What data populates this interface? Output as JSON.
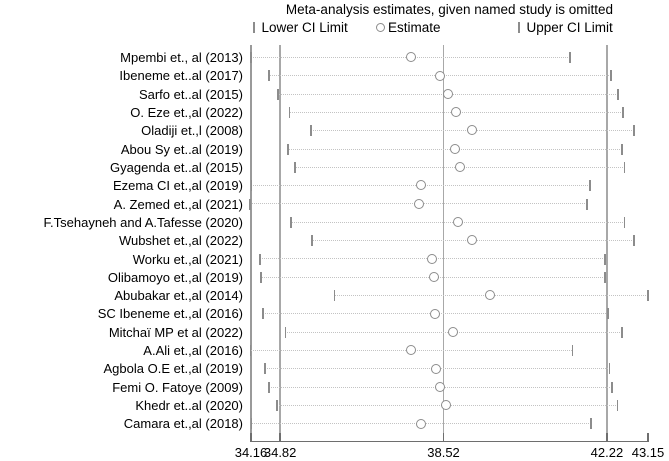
{
  "chart_data": {
    "type": "scatter",
    "subtype": "leave-one-out-sensitivity-forest-plot",
    "title": "Meta-analysis estimates, given named study is omitted",
    "legend": [
      "Lower CI Limit",
      "Estimate",
      "Upper CI Limit"
    ],
    "xlabel": "",
    "ylabel": "",
    "x_range": [
      34.16,
      43.15
    ],
    "x_ticks": [
      34.16,
      34.82,
      38.52,
      42.22,
      43.15
    ],
    "x_tick_labels": [
      "34.16",
      "34.82",
      "38.52",
      "42.22",
      "43.15"
    ],
    "ref_lines": [
      34.82,
      38.52,
      42.22
    ],
    "grid": "off",
    "legend_position": "top",
    "studies": [
      "Mpembi et., al (2013)",
      "Ibeneme et..al (2017)",
      "Sarfo et..al (2015)",
      "O. Eze et.,al (2022)",
      "Oladiji et.,l (2008)",
      "Abou Sy et..al (2019)",
      "Gyagenda et..al (2015)",
      "Ezema CI et.,al (2019)",
      "A. Zemed et.,al (2021)",
      "F.Tsehayneh and A.Tafesse (2020)",
      "Wubshet et.,al (2022)",
      "Worku et.,al (2021)",
      "Olibamoyo et.,al (2019)",
      "Abubakar et.,al (2014)",
      "SC Ibeneme et.,al (2016)",
      "Mitchaï MP et al (2022)",
      "A.Ali et.,al (2016)",
      "Agbola O.E et.,al (2019)",
      "Femi O. Fatoye (2009)",
      "Khedr et..al (2020)",
      "Camara et.,al (2018)"
    ],
    "series": [
      {
        "name": "Lower CI Limit",
        "values": [
          34.16,
          34.56,
          34.78,
          35.03,
          35.52,
          35.0,
          35.15,
          34.17,
          34.14,
          35.07,
          35.55,
          34.37,
          34.38,
          36.05,
          34.43,
          34.94,
          34.15,
          34.48,
          34.57,
          34.75,
          34.17
        ]
      },
      {
        "name": "Estimate",
        "values": [
          37.78,
          38.45,
          38.62,
          38.82,
          39.16,
          38.78,
          38.9,
          38.02,
          37.97,
          38.86,
          39.18,
          38.26,
          38.3,
          39.58,
          38.33,
          38.74,
          37.8,
          38.36,
          38.44,
          38.59,
          38.02
        ]
      },
      {
        "name": "Upper CI Limit",
        "values": [
          41.38,
          42.32,
          42.47,
          42.59,
          42.83,
          42.56,
          42.62,
          41.84,
          41.77,
          42.62,
          42.83,
          42.17,
          42.18,
          43.15,
          42.24,
          42.56,
          41.44,
          42.28,
          42.33,
          42.46,
          41.86
        ]
      }
    ]
  }
}
